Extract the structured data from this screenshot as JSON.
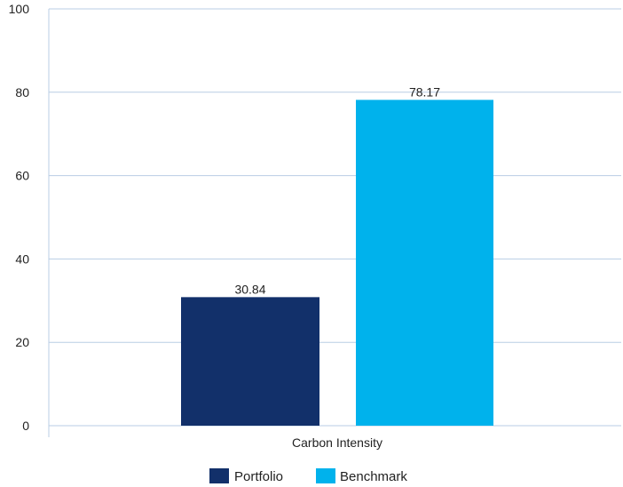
{
  "chart_data": {
    "type": "bar",
    "categories": [
      "Carbon Intensity"
    ],
    "series": [
      {
        "name": "Portfolio",
        "values": [
          30.84
        ],
        "color": "#12306a"
      },
      {
        "name": "Benchmark",
        "values": [
          78.17
        ],
        "color": "#00b2ec"
      }
    ],
    "value_labels": [
      "30.84",
      "78.17"
    ],
    "y_ticks": [
      "0",
      "20",
      "40",
      "60",
      "80",
      "100"
    ],
    "ylim": [
      0,
      100
    ],
    "grid": true,
    "legend_position": "bottom-center",
    "gridline_color": "#b9cde4"
  }
}
